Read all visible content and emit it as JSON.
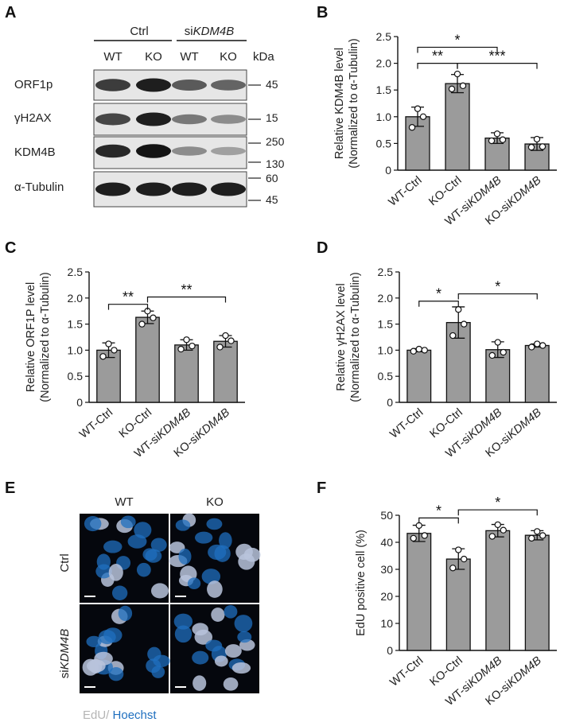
{
  "panels": {
    "A": "A",
    "B": "B",
    "C": "C",
    "D": "D",
    "E": "E",
    "F": "F"
  },
  "blot": {
    "groups": [
      {
        "label": "Ctrl",
        "label_prefix": "",
        "label_italic": ""
      },
      {
        "label": "",
        "label_prefix": "si",
        "label_italic": "KDM4B"
      }
    ],
    "lanes": [
      "WT",
      "KO",
      "WT",
      "KO"
    ],
    "unit": "kDa",
    "rows": [
      {
        "label": "ORF1p",
        "markers": [
          "45"
        ],
        "intensity": [
          0.75,
          0.9,
          0.6,
          0.55
        ]
      },
      {
        "label": "γH2AX",
        "markers": [
          "15"
        ],
        "intensity": [
          0.7,
          0.9,
          0.45,
          0.35
        ]
      },
      {
        "label": "KDM4B",
        "markers": [
          "250",
          "130"
        ],
        "intensity": [
          0.85,
          0.95,
          0.35,
          0.25
        ]
      },
      {
        "label": "α-Tubulin",
        "markers": [
          "60",
          "45"
        ],
        "intensity": [
          0.9,
          0.9,
          0.9,
          0.9
        ]
      }
    ]
  },
  "colors": {
    "bar": "#9b9b9b",
    "edge": "#111111",
    "point_fill": "#ffffff",
    "edu": "#bdbdbd",
    "hoechst": "#1f6fbf"
  },
  "chart_data": [
    {
      "panel": "B",
      "type": "bar",
      "categories": [
        {
          "prefix": "WT-Ctrl",
          "italic": ""
        },
        {
          "prefix": "KO-Ctrl",
          "italic": ""
        },
        {
          "prefix": "WT-si",
          "italic": "KDM4B"
        },
        {
          "prefix": "KO-si",
          "italic": "KDM4B"
        }
      ],
      "values": [
        1.0,
        1.62,
        0.6,
        0.49
      ],
      "errors": [
        0.18,
        0.17,
        0.1,
        0.12
      ],
      "points": [
        [
          1.15,
          0.8,
          1.0
        ],
        [
          1.8,
          1.52,
          1.58
        ],
        [
          0.68,
          0.55,
          0.57
        ],
        [
          0.58,
          0.43,
          0.44
        ]
      ],
      "ylabel": [
        "Relative KDM4B level",
        "(Normalized to α-Tubulin)"
      ],
      "ylim": [
        0,
        2.5
      ],
      "yticks": [
        "0",
        "0.5",
        "1.0",
        "1.5",
        "2.0",
        "2.5"
      ],
      "significance": [
        {
          "from": 0,
          "to": 2,
          "label": "*",
          "level": 2.3
        },
        {
          "from": 0,
          "to": 1,
          "label": "**",
          "level": 2.0
        },
        {
          "from": 1,
          "to": 3,
          "label": "***",
          "level": 2.0
        }
      ]
    },
    {
      "panel": "C",
      "type": "bar",
      "categories": [
        {
          "prefix": "WT-Ctrl",
          "italic": ""
        },
        {
          "prefix": "KO-Ctrl",
          "italic": ""
        },
        {
          "prefix": "WT-si",
          "italic": "KDM4B"
        },
        {
          "prefix": "KO-si",
          "italic": "KDM4B"
        }
      ],
      "values": [
        1.0,
        1.63,
        1.1,
        1.17
      ],
      "errors": [
        0.14,
        0.12,
        0.1,
        0.11
      ],
      "points": [
        [
          1.12,
          0.88,
          1.0
        ],
        [
          1.75,
          1.5,
          1.62
        ],
        [
          1.2,
          1.02,
          1.08
        ],
        [
          1.28,
          1.06,
          1.18
        ]
      ],
      "ylabel": [
        "Relative ORF1P level",
        "(Normalized to α-Tubulin)"
      ],
      "ylim": [
        0,
        2.5
      ],
      "yticks": [
        "0",
        "0.5",
        "1.0",
        "1.5",
        "2.0",
        "2.5"
      ],
      "significance": [
        {
          "from": 0,
          "to": 1,
          "label": "**",
          "level": 1.88
        },
        {
          "from": 1,
          "to": 3,
          "label": "**",
          "level": 2.02
        }
      ]
    },
    {
      "panel": "D",
      "type": "bar",
      "categories": [
        {
          "prefix": "WT-Ctrl",
          "italic": ""
        },
        {
          "prefix": "KO-Ctrl",
          "italic": ""
        },
        {
          "prefix": "WT-si",
          "italic": "KDM4B"
        },
        {
          "prefix": "KO-si",
          "italic": "KDM4B"
        }
      ],
      "values": [
        1.0,
        1.53,
        1.01,
        1.09
      ],
      "errors": [
        0.03,
        0.3,
        0.15,
        0.03
      ],
      "points": [
        [
          1.02,
          0.98,
          1.0
        ],
        [
          1.78,
          1.28,
          1.5
        ],
        [
          1.15,
          0.9,
          0.96
        ],
        [
          1.12,
          1.06,
          1.09
        ]
      ],
      "ylabel": [
        "Relative γH2AX level",
        "(Normalized to α-Tubulin)"
      ],
      "ylim": [
        0,
        2.5
      ],
      "yticks": [
        "0",
        "0.5",
        "1.0",
        "1.5",
        "2.0",
        "2.5"
      ],
      "significance": [
        {
          "from": 0,
          "to": 1,
          "label": "*",
          "level": 1.94
        },
        {
          "from": 1,
          "to": 3,
          "label": "*",
          "level": 2.08
        }
      ]
    },
    {
      "panel": "F",
      "type": "bar",
      "categories": [
        {
          "prefix": "WT-Ctrl",
          "italic": ""
        },
        {
          "prefix": "KO-Ctrl",
          "italic": ""
        },
        {
          "prefix": "WT-si",
          "italic": "KDM4B"
        },
        {
          "prefix": "KO-si",
          "italic": "KDM4B"
        }
      ],
      "values": [
        43.3,
        33.8,
        44.3,
        42.6
      ],
      "errors": [
        3.0,
        3.8,
        2.3,
        1.7
      ],
      "points": [
        [
          46.2,
          41.5,
          42.5
        ],
        [
          37.2,
          30.5,
          33.8
        ],
        [
          46.5,
          42.2,
          44.5
        ],
        [
          44.0,
          41.5,
          42.5
        ]
      ],
      "ylabel": [
        "EdU positive cell (%)"
      ],
      "ylim": [
        0,
        50
      ],
      "yticks": [
        "0",
        "10",
        "20",
        "30",
        "40",
        "50"
      ],
      "significance": [
        {
          "from": 0,
          "to": 1,
          "label": "*",
          "level": 49
        },
        {
          "from": 1,
          "to": 3,
          "label": "*",
          "level": 52
        }
      ]
    }
  ],
  "micro": {
    "columns": [
      "WT",
      "KO"
    ],
    "rows": [
      {
        "prefix": "",
        "italic": "",
        "label": "Ctrl"
      },
      {
        "prefix": "si",
        "italic": "KDM4B",
        "label": ""
      }
    ],
    "caption_a": "EdU/",
    "caption_b": " Hoechst"
  }
}
